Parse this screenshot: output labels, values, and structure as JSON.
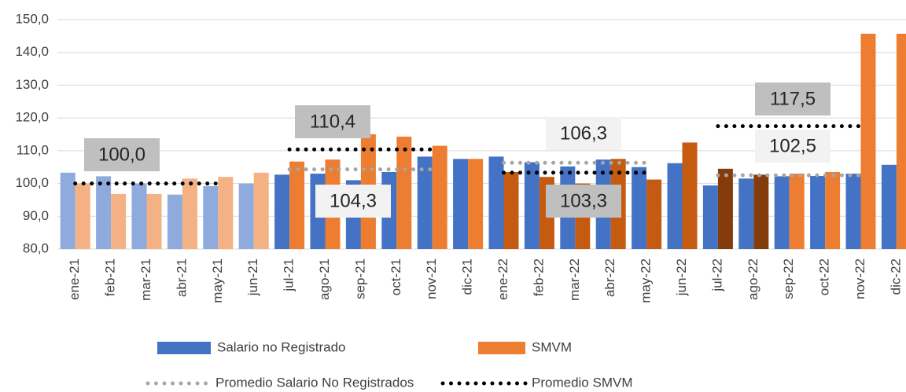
{
  "chart_data": {
    "type": "bar",
    "categories": [
      "ene-21",
      "feb-21",
      "mar-21",
      "abr-21",
      "may-21",
      "jun-21",
      "jul-21",
      "ago-21",
      "sep-21",
      "oct-21",
      "nov-21",
      "dic-21",
      "ene-22",
      "feb-22",
      "mar-22",
      "abr-22",
      "may-22",
      "jun-22",
      "jul-22",
      "ago-22",
      "sep-22",
      "oct-22",
      "nov-22",
      "dic-22"
    ],
    "series": [
      {
        "name": "Salario no Registrado",
        "type": "bar",
        "color": "#4472c4",
        "colors": [
          "#8faadc",
          "#8faadc",
          "#8faadc",
          "#8faadc",
          "#8faadc",
          "#8faadc",
          "#4472c4",
          "#4472c4",
          "#4472c4",
          "#4472c4",
          "#4472c4",
          "#4472c4",
          "#4472c4",
          "#4472c4",
          "#4472c4",
          "#4472c4",
          "#4472c4",
          "#4472c4",
          "#4472c4",
          "#4472c4",
          "#4472c4",
          "#4472c4",
          "#4472c4",
          "#4472c4"
        ],
        "values": [
          103.3,
          102.2,
          100.0,
          96.6,
          99.2,
          100.0,
          102.7,
          103.0,
          101.0,
          103.5,
          108.2,
          107.5,
          108.2,
          106.5,
          105.2,
          107.3,
          105.0,
          106.2,
          99.4,
          101.5,
          102.2,
          102.3,
          103.0,
          105.7
        ]
      },
      {
        "name": "SMVM",
        "type": "bar",
        "color": "#ed7d31",
        "colors": [
          "#f4b183",
          "#f4b183",
          "#f4b183",
          "#f4b183",
          "#f4b183",
          "#f4b183",
          "#ed7d31",
          "#ed7d31",
          "#ed7d31",
          "#ed7d31",
          "#ed7d31",
          "#ed7d31",
          "#c55a11",
          "#c55a11",
          "#c55a11",
          "#c55a11",
          "#c55a11",
          "#c55a11",
          "#843c0c",
          "#843c0c",
          "#ed7d31",
          "#ed7d31",
          "#ed7d31",
          "#ed7d31"
        ],
        "values": [
          100.0,
          96.8,
          96.8,
          101.5,
          102.0,
          103.3,
          106.7,
          107.3,
          115.0,
          114.3,
          111.5,
          107.5,
          103.5,
          102.0,
          100.0,
          107.5,
          101.2,
          112.5,
          104.5,
          102.7,
          103.0,
          103.5,
          145.7,
          145.7
        ]
      },
      {
        "name": "Promedio Salario No Registrados",
        "type": "line",
        "color": "#a6a6a6",
        "values": [
          null,
          null,
          null,
          null,
          null,
          null,
          104.3,
          104.3,
          104.3,
          104.3,
          104.3,
          null,
          106.3,
          106.3,
          106.3,
          106.3,
          106.3,
          null,
          102.5,
          102.5,
          102.5,
          102.5,
          102.5,
          null
        ]
      },
      {
        "name": "Promedio SMVM",
        "type": "line",
        "color": "#000000",
        "values": [
          100.0,
          100.0,
          100.0,
          100.0,
          100.0,
          null,
          110.4,
          110.4,
          110.4,
          110.4,
          110.4,
          null,
          103.3,
          103.3,
          103.3,
          103.3,
          103.3,
          null,
          117.5,
          117.5,
          117.5,
          117.5,
          117.5,
          null
        ]
      }
    ],
    "annotations": [
      {
        "value": 100.0,
        "label": "100,0"
      },
      {
        "value": 110.4,
        "label": "110,4"
      },
      {
        "value": 104.3,
        "label": "104,3"
      },
      {
        "value": 106.3,
        "label": "106,3"
      },
      {
        "value": 103.3,
        "label": "103,3"
      },
      {
        "value": 117.5,
        "label": "117,5"
      },
      {
        "value": 102.5,
        "label": "102,5"
      }
    ],
    "ylim": [
      80,
      150
    ],
    "yticks": [
      {
        "value": 80,
        "label": "80,0"
      },
      {
        "value": 90,
        "label": "90,0"
      },
      {
        "value": 100,
        "label": "100,0"
      },
      {
        "value": 110,
        "label": "110,0"
      },
      {
        "value": 120,
        "label": "120,0"
      },
      {
        "value": 130,
        "label": "130,0"
      },
      {
        "value": 140,
        "label": "140,0"
      },
      {
        "value": 150,
        "label": "150,0"
      }
    ],
    "grid": true,
    "legend": "bottom"
  }
}
